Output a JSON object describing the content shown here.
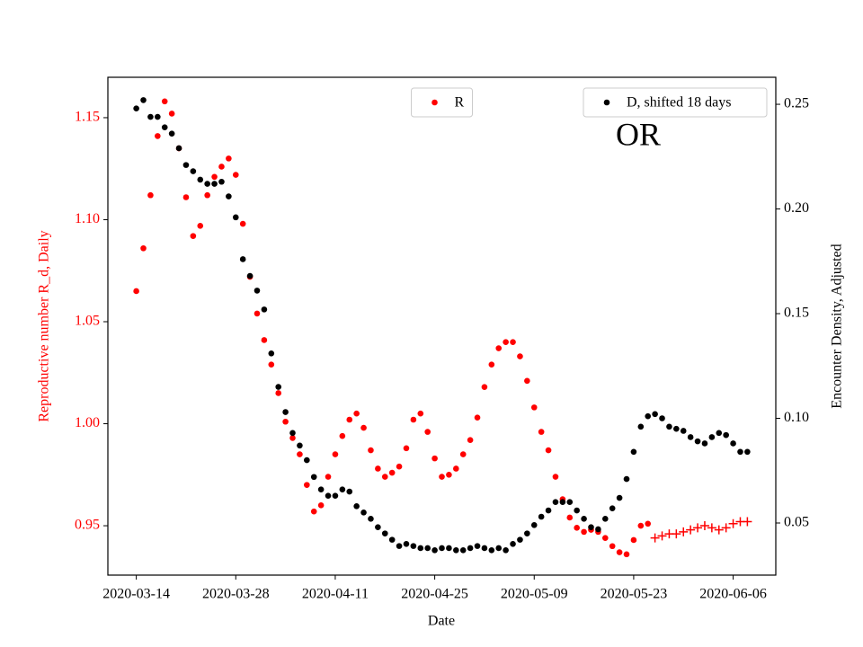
{
  "chart_data": {
    "type": "scatter",
    "annotation": "OR",
    "xlabel": "Date",
    "ylabel": "Reproductive number R_d, Daily",
    "y2label": "Encounter Density, Adjusted",
    "ylabel_color": "#ff0000",
    "x": [
      "2020-03-14",
      "2020-03-15",
      "2020-03-16",
      "2020-03-17",
      "2020-03-18",
      "2020-03-19",
      "2020-03-20",
      "2020-03-21",
      "2020-03-22",
      "2020-03-23",
      "2020-03-24",
      "2020-03-25",
      "2020-03-26",
      "2020-03-27",
      "2020-03-28",
      "2020-03-29",
      "2020-03-30",
      "2020-03-31",
      "2020-04-01",
      "2020-04-02",
      "2020-04-03",
      "2020-04-04",
      "2020-04-05",
      "2020-04-06",
      "2020-04-07",
      "2020-04-08",
      "2020-04-09",
      "2020-04-10",
      "2020-04-11",
      "2020-04-12",
      "2020-04-13",
      "2020-04-14",
      "2020-04-15",
      "2020-04-16",
      "2020-04-17",
      "2020-04-18",
      "2020-04-19",
      "2020-04-20",
      "2020-04-21",
      "2020-04-22",
      "2020-04-23",
      "2020-04-24",
      "2020-04-25",
      "2020-04-26",
      "2020-04-27",
      "2020-04-28",
      "2020-04-29",
      "2020-04-30",
      "2020-05-01",
      "2020-05-02",
      "2020-05-03",
      "2020-05-04",
      "2020-05-05",
      "2020-05-06",
      "2020-05-07",
      "2020-05-08",
      "2020-05-09",
      "2020-05-10",
      "2020-05-11",
      "2020-05-12",
      "2020-05-13",
      "2020-05-14",
      "2020-05-15",
      "2020-05-16",
      "2020-05-17",
      "2020-05-18",
      "2020-05-19",
      "2020-05-20",
      "2020-05-21",
      "2020-05-22",
      "2020-05-23",
      "2020-05-24",
      "2020-05-25",
      "2020-05-26",
      "2020-05-27",
      "2020-05-28",
      "2020-05-29",
      "2020-05-30",
      "2020-05-31",
      "2020-06-01",
      "2020-06-02",
      "2020-06-03",
      "2020-06-04",
      "2020-06-05",
      "2020-06-06",
      "2020-06-07",
      "2020-06-08"
    ],
    "series": [
      {
        "name": "R",
        "color": "#ff0000",
        "marker": "o",
        "values": [
          1.065,
          1.086,
          1.112,
          1.141,
          1.158,
          1.152,
          1.135,
          1.111,
          1.092,
          1.097,
          1.112,
          1.121,
          1.126,
          1.13,
          1.122,
          1.098,
          1.072,
          1.054,
          1.041,
          1.029,
          1.015,
          1.001,
          0.993,
          0.985,
          0.97,
          0.957,
          0.96,
          0.974,
          0.985,
          0.994,
          1.002,
          1.005,
          0.998,
          0.987,
          0.978,
          0.974,
          0.976,
          0.979,
          0.988,
          1.002,
          1.005,
          0.996,
          0.983,
          0.974,
          0.975,
          0.978,
          0.985,
          0.992,
          1.003,
          1.018,
          1.029,
          1.037,
          1.04,
          1.04,
          1.033,
          1.021,
          1.008,
          0.996,
          0.987,
          0.974,
          0.963,
          0.954,
          0.949,
          0.947,
          0.948,
          0.947,
          0.944,
          0.94,
          0.937,
          0.936,
          0.943,
          0.95,
          0.951,
          null,
          null,
          null,
          null,
          null,
          null,
          null,
          null,
          null,
          null,
          null,
          null,
          null,
          null
        ]
      },
      {
        "color": "#ff0000",
        "marker": "+",
        "values": [
          null,
          null,
          null,
          null,
          null,
          null,
          null,
          null,
          null,
          null,
          null,
          null,
          null,
          null,
          null,
          null,
          null,
          null,
          null,
          null,
          null,
          null,
          null,
          null,
          null,
          null,
          null,
          null,
          null,
          null,
          null,
          null,
          null,
          null,
          null,
          null,
          null,
          null,
          null,
          null,
          null,
          null,
          null,
          null,
          null,
          null,
          null,
          null,
          null,
          null,
          null,
          null,
          null,
          null,
          null,
          null,
          null,
          null,
          null,
          null,
          null,
          null,
          null,
          null,
          null,
          null,
          null,
          null,
          null,
          null,
          null,
          null,
          null,
          0.944,
          0.945,
          0.946,
          0.946,
          0.947,
          0.948,
          0.949,
          0.95,
          0.949,
          0.948,
          0.949,
          0.951,
          0.952,
          0.952
        ]
      },
      {
        "name": "D, shifted 18 days",
        "color": "#000000",
        "marker": "o",
        "axis": "y2",
        "values": [
          0.248,
          0.252,
          0.244,
          0.244,
          0.239,
          0.236,
          0.229,
          0.221,
          0.218,
          0.214,
          0.212,
          0.212,
          0.213,
          0.206,
          0.196,
          0.176,
          0.168,
          0.161,
          0.152,
          0.131,
          0.115,
          0.103,
          0.093,
          0.087,
          0.08,
          0.072,
          0.066,
          0.063,
          0.063,
          0.066,
          0.065,
          0.058,
          0.055,
          0.052,
          0.048,
          0.045,
          0.042,
          0.039,
          0.04,
          0.039,
          0.038,
          0.038,
          0.037,
          0.038,
          0.038,
          0.037,
          0.037,
          0.038,
          0.039,
          0.038,
          0.037,
          0.038,
          0.037,
          0.04,
          0.042,
          0.045,
          0.049,
          0.053,
          0.056,
          0.06,
          0.06,
          0.06,
          0.056,
          0.052,
          0.048,
          0.047,
          0.052,
          0.057,
          0.062,
          0.071,
          0.084,
          0.096,
          0.101,
          0.102,
          0.1,
          0.096,
          0.095,
          0.094,
          0.091,
          0.089,
          0.088,
          0.091,
          0.093,
          0.092,
          0.088,
          0.084,
          0.084
        ]
      }
    ],
    "xlim": [
      "2020-03-10",
      "2020-06-12"
    ],
    "xticks": [
      "2020-03-14",
      "2020-03-28",
      "2020-04-11",
      "2020-04-25",
      "2020-05-09",
      "2020-05-23",
      "2020-06-06"
    ],
    "ylim": [
      0.9258,
      1.1698
    ],
    "yticks": [
      {
        "value": 0.95,
        "label": "0.95"
      },
      {
        "value": 1.0,
        "label": "1.00"
      },
      {
        "value": 1.05,
        "label": "1.05"
      },
      {
        "value": 1.1,
        "label": "1.10"
      },
      {
        "value": 1.15,
        "label": "1.15"
      }
    ],
    "y2lim": [
      0.0251,
      0.2629
    ],
    "y2ticks": [
      {
        "value": 0.05,
        "label": "0.05"
      },
      {
        "value": 0.1,
        "label": "0.10"
      },
      {
        "value": 0.15,
        "label": "0.15"
      },
      {
        "value": 0.2,
        "label": "0.20"
      },
      {
        "value": 0.25,
        "label": "0.25"
      }
    ],
    "legend": "upper center",
    "legend2": "upper right"
  }
}
